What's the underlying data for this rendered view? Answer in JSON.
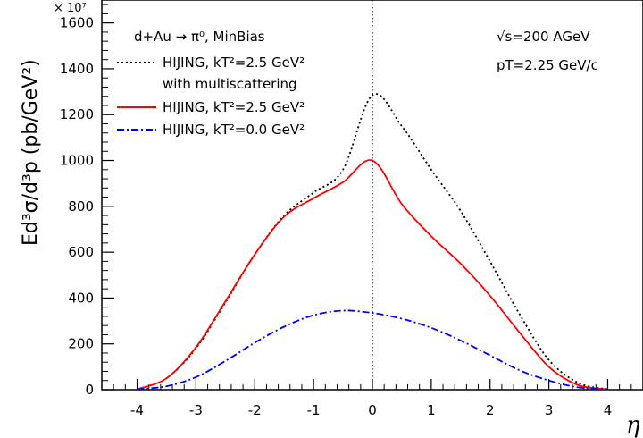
{
  "chart_data": {
    "type": "line",
    "title": "d+Au → π⁰, MinBias",
    "annotations": [
      "√s=200 AGeV",
      "pT=2.25 GeV/c"
    ],
    "xlabel": "η",
    "ylabel": "Ed³σ/d³p (pb/GeV²)",
    "y_multiplier": "× 10⁷",
    "xlim": [
      -4.6,
      4.6
    ],
    "ylim": [
      0,
      1700
    ],
    "xticks": [
      -4,
      -3,
      -2,
      -1,
      0,
      1,
      2,
      3,
      4
    ],
    "yticks": [
      0,
      200,
      400,
      600,
      800,
      1000,
      1200,
      1400,
      1600
    ],
    "reference_line_x": 0,
    "legend_position": "top-left",
    "series": [
      {
        "name": "HIJING, kT²=2.5 GeV² with multiscattering",
        "color": "#000000",
        "style": "dotted",
        "x": [
          -4.0,
          -3.5,
          -3.0,
          -2.5,
          -2.0,
          -1.5,
          -1.0,
          -0.5,
          0.0,
          0.5,
          1.0,
          1.5,
          2.0,
          2.5,
          3.0,
          3.5,
          4.0
        ],
        "y": [
          2,
          50,
          180,
          380,
          590,
          760,
          860,
          960,
          1285,
          1150,
          960,
          780,
          560,
          330,
          130,
          30,
          2
        ]
      },
      {
        "name": "HIJING, kT²=2.5 GeV²",
        "color": "#ff0000",
        "style": "solid",
        "x": [
          -4.0,
          -3.5,
          -3.0,
          -2.5,
          -2.0,
          -1.5,
          -1.0,
          -0.5,
          0.0,
          0.5,
          1.0,
          1.5,
          2.0,
          2.5,
          3.0,
          3.5,
          4.0
        ],
        "y": [
          2,
          50,
          185,
          385,
          590,
          755,
          835,
          905,
          1000,
          810,
          670,
          550,
          410,
          250,
          100,
          20,
          2
        ]
      },
      {
        "name": "HIJING, kT²=0.0 GeV²",
        "color": "#0000ff",
        "style": "dash-dot",
        "x": [
          -4.0,
          -3.5,
          -3.0,
          -2.5,
          -2.0,
          -1.5,
          -1.0,
          -0.5,
          0.0,
          0.5,
          1.0,
          1.5,
          2.0,
          2.5,
          3.0,
          3.5,
          4.0
        ],
        "y": [
          2,
          15,
          55,
          125,
          205,
          275,
          325,
          345,
          335,
          310,
          270,
          215,
          150,
          85,
          40,
          10,
          2
        ]
      }
    ]
  },
  "labels": {
    "title": "d+Au → π⁰, MinBias",
    "energy": "√s=200 AGeV",
    "pt": "pT=2.25 GeV/c",
    "xlabel": "η",
    "ylabel": "Ed³σ/d³p (pb/GeV²)",
    "multiplier": "× 10⁷",
    "legend": [
      "HIJING, kT²=2.5 GeV²",
      "with multiscattering",
      "HIJING, kT²=2.5 GeV²",
      "HIJING, kT²=0.0 GeV²"
    ]
  }
}
